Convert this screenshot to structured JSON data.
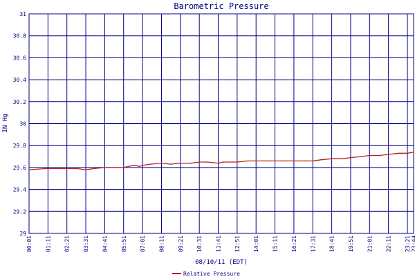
{
  "chart_data": {
    "type": "line",
    "title": "Barometric Pressure",
    "xlabel": "08/10/11 (EDT)",
    "ylabel": "IN Hg",
    "ylim": [
      29,
      31
    ],
    "yticks": [
      29,
      29.2,
      29.4,
      29.6,
      29.8,
      30,
      30.2,
      30.4,
      30.6,
      30.8,
      31
    ],
    "ytick_labels": [
      "29",
      "29.2",
      "29.4",
      "29.6",
      "29.8",
      "30",
      "30.2",
      "30.4",
      "30.6",
      "30.8",
      "31"
    ],
    "x_tick_labels": [
      "00:01",
      "01:11",
      "02:21",
      "03:31",
      "04:41",
      "05:51",
      "07:01",
      "08:11",
      "09:21",
      "10:31",
      "11:41",
      "12:51",
      "14:01",
      "15:11",
      "16:21",
      "17:31",
      "18:41",
      "19:51",
      "21:01",
      "22:11",
      "23:21",
      "23:44"
    ],
    "x_ticks": [
      "00:01",
      "01:11",
      "02:21",
      "03:31",
      "04:41",
      "05:51",
      "07:01",
      "08:11",
      "09:21",
      "10:31",
      "11:41",
      "12:51",
      "14:01",
      "15:11",
      "16:21",
      "17:31",
      "18:41",
      "19:51",
      "21:01",
      "22:11",
      "23:21",
      "23:44"
    ],
    "xlim": [
      "00:01",
      "23:44"
    ],
    "grid": true,
    "legend_position": "bottom-center",
    "series": [
      {
        "name": "Relative Pressure",
        "color": "#b22222",
        "x": [
          "00:01",
          "01:00",
          "02:00",
          "03:00",
          "03:31",
          "04:00",
          "04:41",
          "05:00",
          "05:51",
          "06:30",
          "06:50",
          "07:01",
          "07:30",
          "08:11",
          "08:45",
          "09:21",
          "10:00",
          "10:31",
          "11:00",
          "11:41",
          "12:00",
          "12:51",
          "13:30",
          "14:01",
          "14:30",
          "15:11",
          "15:40",
          "16:21",
          "17:00",
          "17:31",
          "18:00",
          "18:41",
          "19:20",
          "19:51",
          "20:30",
          "21:01",
          "21:40",
          "22:11",
          "22:50",
          "23:21",
          "23:44"
        ],
        "values": [
          29.58,
          29.59,
          29.59,
          29.59,
          29.58,
          29.59,
          29.6,
          29.6,
          29.6,
          29.62,
          29.61,
          29.62,
          29.63,
          29.64,
          29.63,
          29.64,
          29.64,
          29.65,
          29.65,
          29.64,
          29.65,
          29.65,
          29.66,
          29.66,
          29.66,
          29.66,
          29.66,
          29.66,
          29.66,
          29.66,
          29.67,
          29.68,
          29.68,
          29.69,
          29.7,
          29.71,
          29.71,
          29.72,
          29.73,
          29.73,
          29.74
        ]
      }
    ]
  }
}
